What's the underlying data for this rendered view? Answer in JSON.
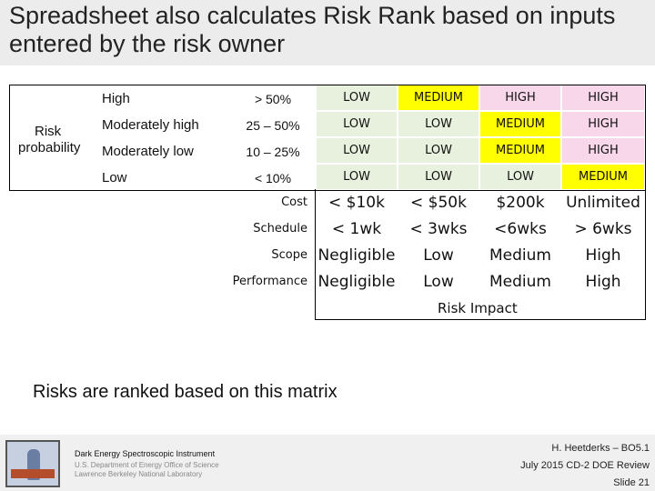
{
  "title": "Spreadsheet also calculates Risk Rank based on inputs entered by the risk owner",
  "matrix": {
    "probability_label_1": "Risk",
    "probability_label_2": "probability",
    "rows": [
      {
        "label": "High",
        "range": "> 50%",
        "cells": [
          "LOW",
          "MEDIUM",
          "HIGH",
          "HIGH"
        ]
      },
      {
        "label": "Moderately high",
        "range": "25 – 50%",
        "cells": [
          "LOW",
          "LOW",
          "MEDIUM",
          "HIGH"
        ]
      },
      {
        "label": "Moderately low",
        "range": "10 – 25%",
        "cells": [
          "LOW",
          "LOW",
          "MEDIUM",
          "HIGH"
        ]
      },
      {
        "label": "Low",
        "range": "< 10%",
        "cells": [
          "LOW",
          "LOW",
          "LOW",
          "MEDIUM"
        ]
      }
    ],
    "impact_rows": [
      {
        "label": "Cost",
        "values": [
          "< $10k",
          "< $50k",
          "$200k",
          "Unlimited"
        ]
      },
      {
        "label": "Schedule",
        "values": [
          "< 1wk",
          "< 3wks",
          "<6wks",
          "> 6wks"
        ]
      },
      {
        "label": "Scope",
        "values": [
          "Negligible",
          "Low",
          "Medium",
          "High"
        ]
      },
      {
        "label": "Performance",
        "values": [
          "Negligible",
          "Low",
          "Medium",
          "High"
        ]
      }
    ],
    "impact_axis_label": "Risk Impact",
    "colors": {
      "LOW": "#e7f1dd",
      "MEDIUM": "#ffff00",
      "HIGH": "#f9d7eb"
    }
  },
  "caption": "Risks are ranked based on this matrix",
  "footer": {
    "org_name": "Dark Energy Spectroscopic Instrument",
    "org_line2": "U.S. Department of Energy Office of Science",
    "org_line3": "Lawrence Berkeley National Laboratory",
    "presenter": "H. Heetderks – BO5.1",
    "event": "July 2015 CD-2 DOE Review",
    "slide": "Slide 21"
  }
}
